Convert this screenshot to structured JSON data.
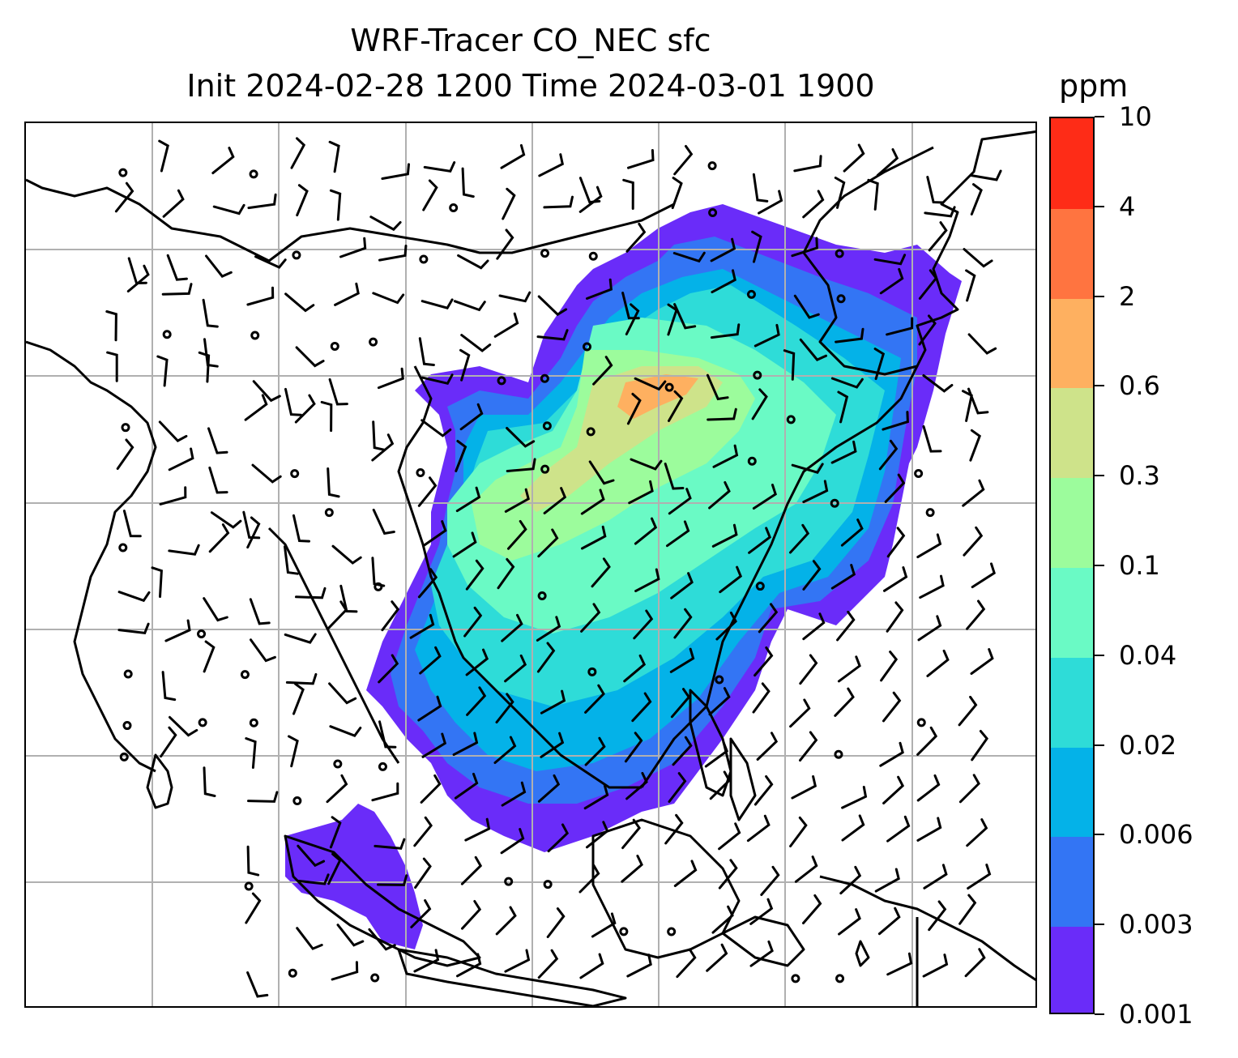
{
  "title": {
    "line1": "WRF-Tracer CO_NEC sfc",
    "line2": "Init 2024-02-28 1200 Time 2024-03-01 1900"
  },
  "colorbar": {
    "unit": "ppm",
    "levels": [
      "0.001",
      "0.003",
      "0.006",
      "0.02",
      "0.04",
      "0.1",
      "0.3",
      "0.6",
      "2",
      "4",
      "10"
    ],
    "colors": [
      "#6a2cf9",
      "#3375f4",
      "#04b2e8",
      "#2edcd8",
      "#6afac5",
      "#9cfc9c",
      "#cee38a",
      "#feb060",
      "#ff7440",
      "#fe2c17"
    ]
  },
  "map": {
    "gridlines": true,
    "gridline_color": "#b0b0b0",
    "coastline_color": "#000000",
    "barb_color": "#000000"
  }
}
